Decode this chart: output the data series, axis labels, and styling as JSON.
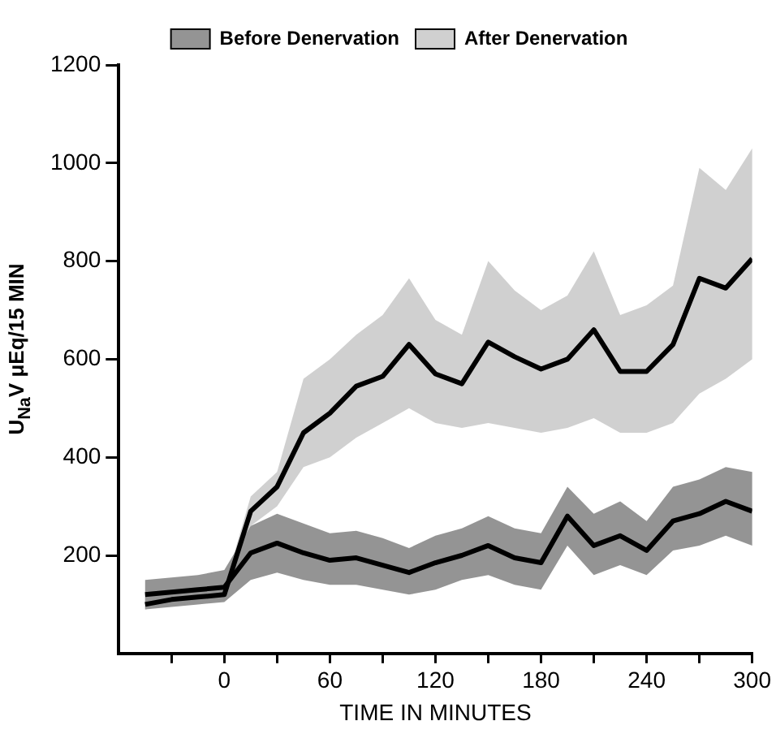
{
  "chart_data": {
    "type": "line",
    "xlabel": "TIME IN MINUTES",
    "ylabel": "U$_{Na}$V μEq/15 MIN",
    "x": [
      -45,
      -30,
      -15,
      0,
      15,
      30,
      45,
      60,
      75,
      90,
      105,
      120,
      135,
      150,
      165,
      180,
      195,
      210,
      225,
      240,
      255,
      270,
      285,
      300
    ],
    "series": [
      {
        "name": "Before Denervation",
        "color": "#000000",
        "values": [
          120,
          125,
          130,
          135,
          205,
          225,
          205,
          190,
          195,
          180,
          165,
          185,
          200,
          220,
          195,
          185,
          280,
          220,
          240,
          210,
          270,
          285,
          310,
          290
        ],
        "lower": [
          90,
          95,
          100,
          105,
          150,
          165,
          150,
          140,
          140,
          130,
          120,
          130,
          150,
          160,
          140,
          130,
          220,
          160,
          180,
          160,
          210,
          220,
          240,
          220
        ],
        "upper": [
          150,
          155,
          160,
          170,
          260,
          285,
          265,
          245,
          250,
          235,
          215,
          240,
          255,
          280,
          255,
          245,
          340,
          285,
          310,
          270,
          340,
          355,
          380,
          370
        ]
      },
      {
        "name": "After Denervation",
        "color": "#000000",
        "values": [
          100,
          110,
          115,
          120,
          290,
          340,
          450,
          490,
          545,
          565,
          630,
          570,
          550,
          635,
          605,
          580,
          600,
          660,
          575,
          575,
          630,
          765,
          745,
          805
        ],
        "lower": [
          90,
          100,
          105,
          110,
          260,
          300,
          380,
          400,
          440,
          470,
          500,
          470,
          460,
          470,
          460,
          450,
          460,
          480,
          450,
          450,
          470,
          530,
          560,
          600
        ],
        "upper": [
          120,
          125,
          130,
          135,
          320,
          370,
          560,
          600,
          650,
          690,
          765,
          680,
          650,
          800,
          740,
          700,
          730,
          820,
          690,
          710,
          750,
          990,
          945,
          1030
        ]
      }
    ],
    "xlim": [
      -60,
      300
    ],
    "xticks": [
      {
        "value": -30,
        "label": null
      },
      0,
      {
        "value": 30,
        "label": null
      },
      60,
      {
        "value": 90,
        "label": null
      },
      120,
      {
        "value": 150,
        "label": null
      },
      180,
      {
        "value": 210,
        "label": null
      },
      240,
      {
        "value": 270,
        "label": null
      },
      300
    ],
    "ylim": [
      0,
      1200
    ],
    "yticks": [
      200,
      400,
      600,
      800,
      1000,
      1200
    ],
    "grid": false,
    "legend": "top",
    "marker": "none",
    "line_style": "solid"
  }
}
